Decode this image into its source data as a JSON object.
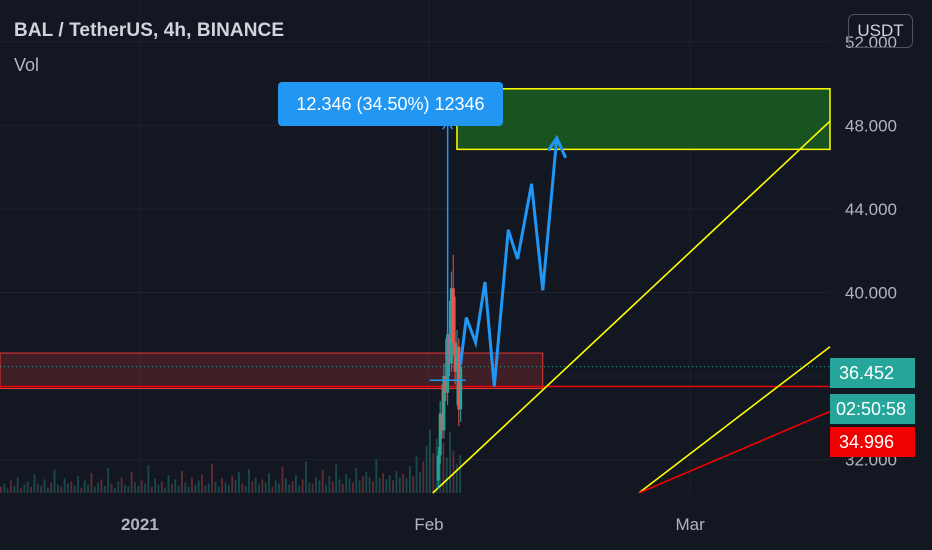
{
  "header": {
    "symbol_title": "BAL / TetherUS, 4h, BINANCE",
    "volume_label": "Vol",
    "currency_button": "USDT"
  },
  "measure": {
    "label": "12.346 (34.50%) 12346",
    "from_price": 35.8,
    "to_price": 48.15
  },
  "price_tags": {
    "last_price": "36.452",
    "countdown": "02:50:58",
    "red_line_price": "34.996"
  },
  "colors": {
    "background": "#131722",
    "grid": "#1e222d",
    "up": "#26a69a",
    "down": "#ef5350",
    "projection": "#2196f3",
    "trendline": "#ffff00",
    "red_line": "#f00000",
    "target_zone": "#1b5e20",
    "support_zone": "#e53935"
  },
  "chart_data": {
    "type": "line",
    "symbol": "BAL / TetherUS",
    "interval": "4h",
    "exchange": "BINANCE",
    "y_axis": {
      "range": [
        30.4,
        54.0
      ],
      "ticks": [
        "52.000",
        "48.000",
        "44.000",
        "40.000",
        "36.000",
        "32.000"
      ],
      "tick_values": [
        52,
        48,
        44,
        40,
        36,
        32
      ]
    },
    "x_axis": {
      "ticks": [
        {
          "label": "2021",
          "day": 0
        },
        {
          "label": "Feb",
          "day": 31
        },
        {
          "label": "Mar",
          "day": 59
        }
      ],
      "range_days": [
        -15,
        74
      ]
    },
    "candles": [
      {
        "day": 32.0,
        "open": 31.0,
        "high": 32.6,
        "low": 30.6,
        "close": 32.2
      },
      {
        "day": 32.2,
        "open": 32.2,
        "high": 34.8,
        "low": 31.8,
        "close": 34.2
      },
      {
        "day": 32.4,
        "open": 34.2,
        "high": 35.6,
        "low": 33.0,
        "close": 33.4
      },
      {
        "day": 32.6,
        "open": 33.4,
        "high": 36.6,
        "low": 33.0,
        "close": 36.0
      },
      {
        "day": 32.8,
        "open": 36.0,
        "high": 37.8,
        "low": 34.8,
        "close": 35.2
      },
      {
        "day": 33.0,
        "open": 35.2,
        "high": 38.6,
        "low": 34.6,
        "close": 38.0
      },
      {
        "day": 33.2,
        "open": 38.0,
        "high": 39.6,
        "low": 36.0,
        "close": 36.6
      },
      {
        "day": 33.4,
        "open": 36.6,
        "high": 41.0,
        "low": 36.2,
        "close": 40.2
      },
      {
        "day": 33.6,
        "open": 40.2,
        "high": 41.8,
        "low": 37.0,
        "close": 37.6
      },
      {
        "day": 33.8,
        "open": 37.6,
        "high": 39.8,
        "low": 35.6,
        "close": 36.2
      },
      {
        "day": 34.0,
        "open": 36.2,
        "high": 38.2,
        "low": 34.6,
        "close": 37.4
      },
      {
        "day": 34.2,
        "open": 37.4,
        "high": 37.8,
        "low": 33.6,
        "close": 34.4
      },
      {
        "day": 34.4,
        "open": 34.4,
        "high": 36.8,
        "low": 33.8,
        "close": 36.452
      }
    ],
    "volume_bars": [
      6,
      9,
      4,
      12,
      7,
      15,
      5,
      8,
      11,
      6,
      18,
      9,
      7,
      13,
      5,
      10,
      22,
      8,
      6,
      14,
      9,
      11,
      7,
      16,
      5,
      12,
      8,
      19,
      6,
      10,
      13,
      7,
      24,
      9,
      5,
      11,
      15,
      8,
      6,
      20,
      10,
      7,
      12,
      9,
      26,
      6,
      14,
      8,
      11,
      5,
      17,
      9,
      13,
      7,
      21,
      10,
      6,
      15,
      8,
      12,
      18,
      7,
      9,
      28,
      11,
      6,
      14,
      10,
      8,
      16,
      12,
      20,
      9,
      7,
      23,
      11,
      15,
      8,
      13,
      10,
      19,
      6,
      12,
      9,
      25,
      14,
      8,
      11,
      17,
      7,
      13,
      30,
      10,
      9,
      15,
      12,
      22,
      8,
      16,
      11,
      27,
      13,
      9,
      18,
      14,
      10,
      24,
      12,
      16,
      20,
      15,
      11,
      32,
      14,
      19,
      13,
      17,
      12,
      21,
      15,
      18,
      14,
      26,
      16,
      35,
      20,
      30,
      45,
      60,
      38,
      52,
      70,
      48,
      34,
      58,
      40,
      28,
      36
    ],
    "projection_path": [
      {
        "day": 34.4,
        "price": 36.6
      },
      {
        "day": 35.0,
        "price": 38.8
      },
      {
        "day": 36.0,
        "price": 37.6
      },
      {
        "day": 37.0,
        "price": 40.5
      },
      {
        "day": 38.0,
        "price": 35.5
      },
      {
        "day": 39.5,
        "price": 43.0
      },
      {
        "day": 40.5,
        "price": 41.6
      },
      {
        "day": 42.0,
        "price": 45.2
      },
      {
        "day": 43.2,
        "price": 40.1
      },
      {
        "day": 44.7,
        "price": 47.4
      },
      {
        "day": 43.8,
        "price": 46.8
      },
      {
        "day": 44.7,
        "price": 47.4
      },
      {
        "day": 45.6,
        "price": 46.5
      }
    ],
    "target_zone": {
      "day_start": 34.0,
      "day_end": 74,
      "price_low": 46.85,
      "price_high": 49.75
    },
    "support_zone": {
      "day_start": -15,
      "day_end": 43.2,
      "price_low": 35.4,
      "price_high": 37.1
    },
    "support_line": {
      "price": 35.5
    },
    "current_price_line": {
      "price": 36.452
    },
    "trendlines": [
      {
        "from": {
          "day": 31.4,
          "price": 30.4
        },
        "to": {
          "day": 74,
          "price": 48.2
        },
        "color": "yellow"
      },
      {
        "from": {
          "day": 53.5,
          "price": 30.4
        },
        "to": {
          "day": 74,
          "price": 37.4
        },
        "color": "yellow"
      },
      {
        "from": {
          "day": 53.5,
          "price": 30.4
        },
        "to": {
          "day": 74,
          "price": 34.3
        },
        "color": "red"
      }
    ]
  }
}
